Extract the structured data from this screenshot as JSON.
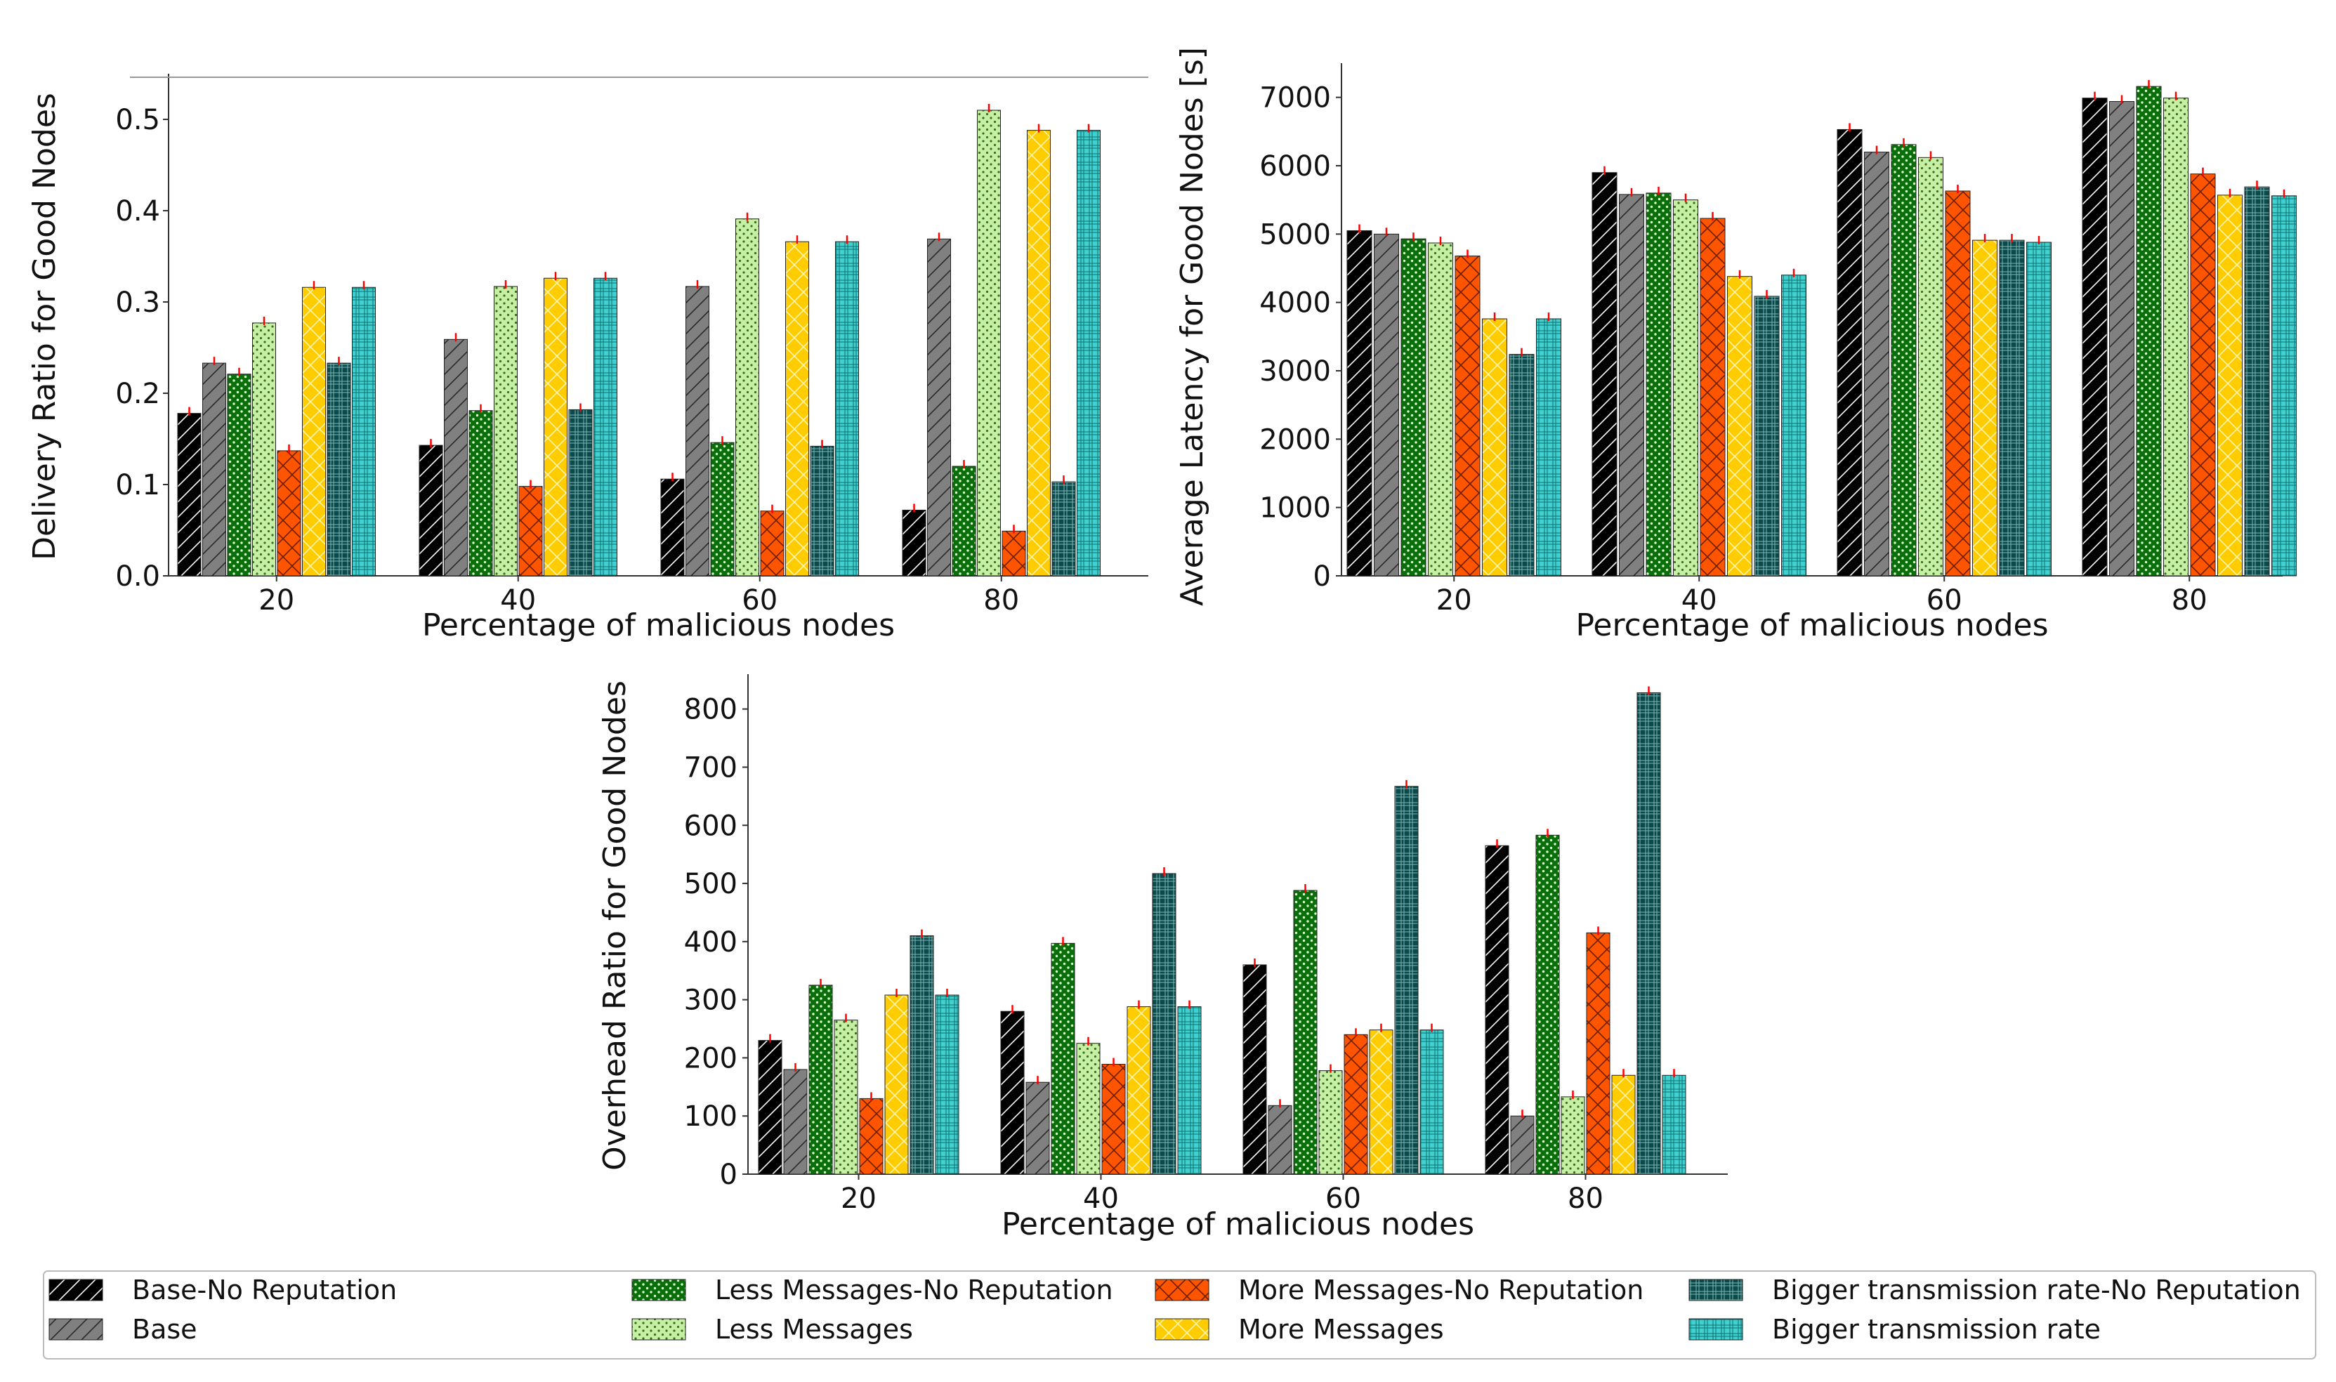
{
  "chart_data": [
    {
      "type": "bar",
      "xlabel": "Percentage of malicious nodes",
      "ylabel": "Delivery Ratio for Good Nodes",
      "categories": [
        "20",
        "40",
        "60",
        "80"
      ],
      "ylim": [
        0,
        0.55
      ],
      "yticks": [
        0.0,
        0.1,
        0.2,
        0.3,
        0.4,
        0.5
      ],
      "yticklabels": [
        "0.0",
        "0.1",
        "0.2",
        "0.3",
        "0.4",
        "0.5"
      ],
      "series": [
        {
          "name": "Base-No Reputation",
          "values": [
            0.178,
            0.143,
            0.106,
            0.072
          ]
        },
        {
          "name": "Base",
          "values": [
            0.233,
            0.259,
            0.317,
            0.369
          ]
        },
        {
          "name": "Less Messages-No Reputation",
          "values": [
            0.221,
            0.181,
            0.146,
            0.12
          ]
        },
        {
          "name": "Less Messages",
          "values": [
            0.277,
            0.317,
            0.391,
            0.51
          ]
        },
        {
          "name": "More Messages-No Reputation",
          "values": [
            0.137,
            0.098,
            0.071,
            0.049
          ]
        },
        {
          "name": "More Messages",
          "values": [
            0.316,
            0.326,
            0.366,
            0.488
          ]
        },
        {
          "name": "Bigger transmission rate-No Reputation",
          "values": [
            0.233,
            0.182,
            0.142,
            0.103
          ]
        },
        {
          "name": "Bigger transmission rate",
          "values": [
            0.316,
            0.326,
            0.366,
            0.488
          ]
        }
      ]
    },
    {
      "type": "bar",
      "xlabel": "Percentage of malicious nodes",
      "ylabel": "Average Latency for Good Nodes [s]",
      "categories": [
        "20",
        "40",
        "60",
        "80"
      ],
      "ylim": [
        0,
        7500
      ],
      "yticks": [
        0,
        1000,
        2000,
        3000,
        4000,
        5000,
        6000,
        7000
      ],
      "yticklabels": [
        "0",
        "1000",
        "2000",
        "3000",
        "4000",
        "5000",
        "6000",
        "7000"
      ],
      "series": [
        {
          "name": "Base-No Reputation",
          "values": [
            5050,
            5900,
            6530,
            6990
          ]
        },
        {
          "name": "Base",
          "values": [
            5000,
            5580,
            6200,
            6940
          ]
        },
        {
          "name": "Less Messages-No Reputation",
          "values": [
            4930,
            5600,
            6310,
            7160
          ]
        },
        {
          "name": "Less Messages",
          "values": [
            4870,
            5500,
            6120,
            6990
          ]
        },
        {
          "name": "More Messages-No Reputation",
          "values": [
            4680,
            5230,
            5630,
            5880
          ]
        },
        {
          "name": "More Messages",
          "values": [
            3760,
            4380,
            4910,
            5570
          ]
        },
        {
          "name": "Bigger transmission rate-No Reputation",
          "values": [
            3240,
            4090,
            4910,
            5690
          ]
        },
        {
          "name": "Bigger transmission rate",
          "values": [
            3760,
            4400,
            4880,
            5560
          ]
        }
      ]
    },
    {
      "type": "bar",
      "xlabel": "Percentage of malicious nodes",
      "ylabel": "Overhead Ratio for Good Nodes",
      "categories": [
        "20",
        "40",
        "60",
        "80"
      ],
      "ylim": [
        0,
        860
      ],
      "yticks": [
        0,
        100,
        200,
        300,
        400,
        500,
        600,
        700,
        800
      ],
      "yticklabels": [
        "0",
        "100",
        "200",
        "300",
        "400",
        "500",
        "600",
        "700",
        "800"
      ],
      "series": [
        {
          "name": "Base-No Reputation",
          "values": [
            230,
            280,
            360,
            565
          ]
        },
        {
          "name": "Base",
          "values": [
            180,
            158,
            118,
            100
          ]
        },
        {
          "name": "Less Messages-No Reputation",
          "values": [
            325,
            397,
            488,
            583
          ]
        },
        {
          "name": "Less Messages",
          "values": [
            265,
            225,
            178,
            133
          ]
        },
        {
          "name": "More Messages-No Reputation",
          "values": [
            130,
            189,
            240,
            415
          ]
        },
        {
          "name": "More Messages",
          "values": [
            308,
            288,
            248,
            170
          ]
        },
        {
          "name": "Bigger transmission rate-No Reputation",
          "values": [
            410,
            517,
            667,
            828
          ]
        },
        {
          "name": "Bigger transmission rate",
          "values": [
            308,
            288,
            248,
            170
          ]
        }
      ]
    }
  ],
  "legend": {
    "placement": "bottom",
    "entries": [
      {
        "label": "Base-No Reputation",
        "color": "#000000",
        "pattern": "diag-light"
      },
      {
        "label": "Less Messages-No Reputation",
        "color": "#0a6e0a",
        "pattern": "dots-light"
      },
      {
        "label": "More Messages-No Reputation",
        "color": "#ff5500",
        "pattern": "cross-dark"
      },
      {
        "label": "Bigger transmission rate-No Reputation",
        "color": "#0b4a4a",
        "pattern": "grid-light"
      },
      {
        "label": "Base",
        "color": "#808080",
        "pattern": "diag-dark"
      },
      {
        "label": "Less Messages",
        "color": "#c5f0a4",
        "pattern": "dots-dark"
      },
      {
        "label": "More Messages",
        "color": "#ffcc00",
        "pattern": "cross-light"
      },
      {
        "label": "Bigger transmission rate",
        "color": "#40d0d0",
        "pattern": "grid-dark"
      }
    ]
  }
}
